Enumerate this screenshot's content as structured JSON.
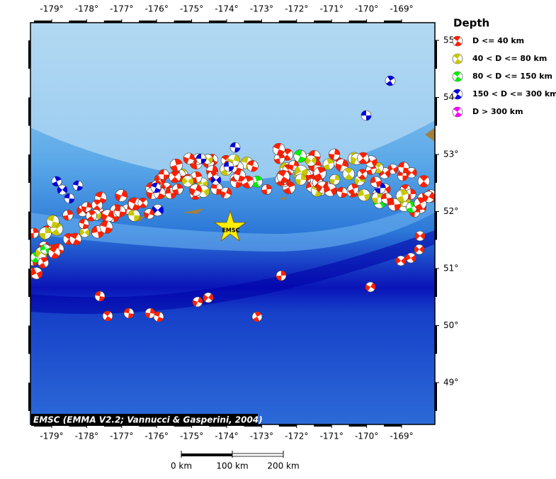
{
  "map": {
    "lon_ticks": [
      "-179°",
      "-178°",
      "-177°",
      "-176°",
      "-175°",
      "-174°",
      "-173°",
      "-172°",
      "-171°",
      "-170°",
      "-169°"
    ],
    "lat_ticks": [
      "55°",
      "54°",
      "53°",
      "52°",
      "51°",
      "50°",
      "49°"
    ],
    "legend": {
      "title": "Depth",
      "entries": [
        {
          "label": "D <= 40 km",
          "color": "#ff2000"
        },
        {
          "label": "40 < D <= 80 km",
          "color": "#c8c800"
        },
        {
          "label": "80 < D <= 150 km",
          "color": "#00ee00"
        },
        {
          "label": "150 < D <= 300 km",
          "color": "#0000dd"
        },
        {
          "label": "D > 300 km",
          "color": "#ff00ff"
        }
      ]
    },
    "epicenter_label": "EMSC",
    "credit": "EMSC (EMMA V2.2; Vannucci & Gasperini, 2004)",
    "scale_labels": [
      "0 km",
      "100 km",
      "200 km"
    ]
  }
}
